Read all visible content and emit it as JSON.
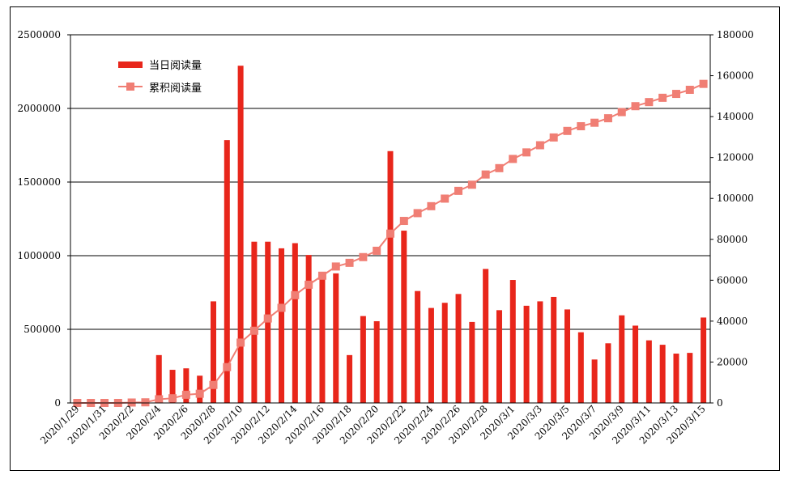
{
  "chart_data": {
    "type": "bar+line",
    "title": "",
    "x": [
      "2020/1/29",
      "2020/1/30",
      "2020/1/31",
      "2020/2/1",
      "2020/2/2",
      "2020/2/3",
      "2020/2/4",
      "2020/2/5",
      "2020/2/6",
      "2020/2/7",
      "2020/2/8",
      "2020/2/9",
      "2020/2/10",
      "2020/2/11",
      "2020/2/12",
      "2020/2/13",
      "2020/2/14",
      "2020/2/15",
      "2020/2/16",
      "2020/2/17",
      "2020/2/18",
      "2020/2/19",
      "2020/2/20",
      "2020/2/21",
      "2020/2/22",
      "2020/2/23",
      "2020/2/24",
      "2020/2/25",
      "2020/2/26",
      "2020/2/27",
      "2020/2/28",
      "2020/2/29",
      "2020/3/1",
      "2020/3/2",
      "2020/3/3",
      "2020/3/4",
      "2020/3/5",
      "2020/3/6",
      "2020/3/7",
      "2020/3/8",
      "2020/3/9",
      "2020/3/10",
      "2020/3/11",
      "2020/3/12",
      "2020/3/13",
      "2020/3/14",
      "2020/3/15"
    ],
    "x_tick_labels": [
      "2020/1/29",
      "2020/1/31",
      "2020/2/2",
      "2020/2/4",
      "2020/2/6",
      "2020/2/8",
      "2020/2/10",
      "2020/2/12",
      "2020/2/14",
      "2020/2/16",
      "2020/2/18",
      "2020/2/20",
      "2020/2/22",
      "2020/2/24",
      "2020/2/26",
      "2020/2/28",
      "2020/3/1",
      "2020/3/3",
      "2020/3/5",
      "2020/3/7",
      "2020/3/9",
      "2020/3/11",
      "2020/3/13",
      "2020/3/15"
    ],
    "series": [
      {
        "name": "当日阅读量",
        "type": "bar",
        "axis": "left",
        "color": "#e8261b",
        "values": [
          0,
          0,
          0,
          0,
          0,
          0,
          325000,
          225000,
          235000,
          185000,
          690000,
          1785000,
          2290000,
          1095000,
          1095000,
          1050000,
          1085000,
          1005000,
          860000,
          880000,
          325000,
          590000,
          555000,
          1710000,
          1170000,
          760000,
          645000,
          680000,
          740000,
          550000,
          910000,
          630000,
          835000,
          660000,
          690000,
          720000,
          635000,
          480000,
          295000,
          405000,
          595000,
          525000,
          425000,
          395000,
          335000,
          340000,
          580000
        ]
      },
      {
        "name": "累积阅读量",
        "type": "line",
        "axis": "right",
        "color": "#f07e74",
        "values": [
          0,
          0,
          0,
          0,
          200,
          300,
          1800,
          2300,
          4000,
          4500,
          8800,
          17500,
          29500,
          35300,
          41300,
          46500,
          52700,
          57800,
          62200,
          66700,
          68500,
          71300,
          74400,
          82800,
          89000,
          92800,
          96200,
          99900,
          103700,
          106700,
          111700,
          114800,
          119300,
          122500,
          126000,
          129800,
          133000,
          135300,
          137000,
          139200,
          142200,
          145100,
          147100,
          149200,
          151100,
          153100,
          156000
        ]
      }
    ],
    "y_left": {
      "min": 0,
      "max": 2500000,
      "ticks": [
        0,
        500000,
        1000000,
        1500000,
        2000000,
        2500000
      ]
    },
    "y_right": {
      "min": 0,
      "max": 180000,
      "ticks": [
        0,
        20000,
        40000,
        60000,
        80000,
        100000,
        120000,
        140000,
        160000,
        180000
      ]
    },
    "grid": true,
    "legend": {
      "position": "top-left",
      "items": [
        "当日阅读量",
        "累积阅读量"
      ]
    }
  }
}
